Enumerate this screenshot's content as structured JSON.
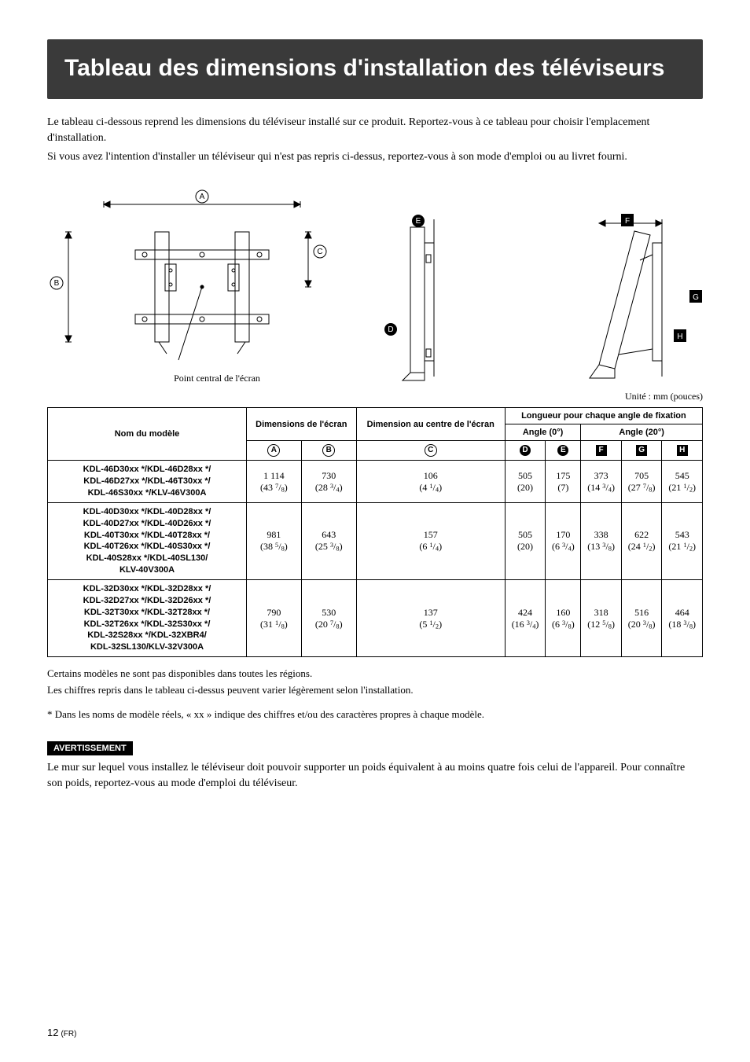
{
  "title": "Tableau des dimensions d'installation des téléviseurs",
  "intro": {
    "p1": "Le tableau ci-dessous reprend les dimensions du téléviseur installé sur ce produit. Reportez-vous à ce tableau pour choisir l'emplacement d'installation.",
    "p2": "Si vous avez l'intention d'installer un téléviseur qui n'est pas repris ci-dessus, reportez-vous à son mode d'emploi ou au livret fourni."
  },
  "figure": {
    "caption": "Point central de l'écran",
    "labels": {
      "A": "A",
      "B": "B",
      "C": "C",
      "D": "D",
      "E": "E",
      "F": "F",
      "G": "G",
      "H": "H"
    }
  },
  "unit_line": "Unité : mm (pouces)",
  "table": {
    "header": {
      "model": "Nom du modèle",
      "screen_dims": "Dimensions de l'écran",
      "center_dim": "Dimension au centre de l'écran",
      "angle_group": "Longueur pour chaque angle de fixation",
      "angle0": "Angle (0°)",
      "angle20": "Angle (20°)"
    },
    "col_labels": {
      "A": "A",
      "B": "B",
      "C": "C",
      "D": "D",
      "E": "E",
      "F": "F",
      "G": "G",
      "H": "H"
    },
    "rows": [
      {
        "model_lines": [
          "KDL-46D30xx */KDL-46D28xx */",
          "KDL-46D27xx */KDL-46T30xx */",
          "KDL-46S30xx */KLV-46V300A"
        ],
        "A": {
          "mm": "1 114",
          "in_whole": "43",
          "in_num": "7",
          "in_den": "8"
        },
        "B": {
          "mm": "730",
          "in_whole": "28",
          "in_num": "3",
          "in_den": "4"
        },
        "C": {
          "mm": "106",
          "in_whole": "4",
          "in_num": "1",
          "in_den": "4"
        },
        "D": {
          "mm": "505",
          "in_plain": "(20)"
        },
        "E": {
          "mm": "175",
          "in_plain": "(7)"
        },
        "F": {
          "mm": "373",
          "in_whole": "14",
          "in_num": "3",
          "in_den": "4"
        },
        "G": {
          "mm": "705",
          "in_whole": "27",
          "in_num": "7",
          "in_den": "8"
        },
        "H": {
          "mm": "545",
          "in_whole": "21",
          "in_num": "1",
          "in_den": "2"
        }
      },
      {
        "model_lines": [
          "KDL-40D30xx */KDL-40D28xx */",
          "KDL-40D27xx */KDL-40D26xx */",
          "KDL-40T30xx */KDL-40T28xx */",
          "KDL-40T26xx */KDL-40S30xx */",
          "KDL-40S28xx */KDL-40SL130/",
          "KLV-40V300A"
        ],
        "A": {
          "mm": "981",
          "in_whole": "38",
          "in_num": "5",
          "in_den": "8"
        },
        "B": {
          "mm": "643",
          "in_whole": "25",
          "in_num": "3",
          "in_den": "8"
        },
        "C": {
          "mm": "157",
          "in_whole": "6",
          "in_num": "1",
          "in_den": "4"
        },
        "D": {
          "mm": "505",
          "in_plain": "(20)"
        },
        "E": {
          "mm": "170",
          "in_whole": "6",
          "in_num": "3",
          "in_den": "4"
        },
        "F": {
          "mm": "338",
          "in_whole": "13",
          "in_num": "3",
          "in_den": "8"
        },
        "G": {
          "mm": "622",
          "in_whole": "24",
          "in_num": "1",
          "in_den": "2"
        },
        "H": {
          "mm": "543",
          "in_whole": "21",
          "in_num": "1",
          "in_den": "2"
        }
      },
      {
        "model_lines": [
          "KDL-32D30xx */KDL-32D28xx */",
          "KDL-32D27xx */KDL-32D26xx */",
          "KDL-32T30xx */KDL-32T28xx */",
          "KDL-32T26xx */KDL-32S30xx */",
          "KDL-32S28xx */KDL-32XBR4/",
          "KDL-32SL130/KLV-32V300A"
        ],
        "A": {
          "mm": "790",
          "in_whole": "31",
          "in_num": "1",
          "in_den": "8"
        },
        "B": {
          "mm": "530",
          "in_whole": "20",
          "in_num": "7",
          "in_den": "8"
        },
        "C": {
          "mm": "137",
          "in_whole": "5",
          "in_num": "1",
          "in_den": "2"
        },
        "D": {
          "mm": "424",
          "in_whole": "16",
          "in_num": "3",
          "in_den": "4"
        },
        "E": {
          "mm": "160",
          "in_whole": "6",
          "in_num": "3",
          "in_den": "8"
        },
        "F": {
          "mm": "318",
          "in_whole": "12",
          "in_num": "5",
          "in_den": "8"
        },
        "G": {
          "mm": "516",
          "in_whole": "20",
          "in_num": "3",
          "in_den": "8"
        },
        "H": {
          "mm": "464",
          "in_whole": "18",
          "in_num": "3",
          "in_den": "8"
        }
      }
    ]
  },
  "notes": {
    "n1": "Certains modèles ne sont pas disponibles dans toutes les régions.",
    "n2": "Les chiffres repris dans le tableau ci-dessus peuvent varier légèrement selon l'installation.",
    "star": "*  Dans les noms de modèle réels, « xx » indique des chiffres et/ou des caractères propres à chaque modèle."
  },
  "warning": {
    "label": "AVERTISSEMENT",
    "text": "Le mur sur lequel vous installez le téléviseur doit pouvoir supporter un poids équivalent à au moins quatre fois celui de l'appareil. Pour connaître son poids, reportez-vous au mode d'emploi du téléviseur."
  },
  "pagenum": {
    "num": "12",
    "lang": "(FR)"
  },
  "colors": {
    "band_bg": "#3a3a3a",
    "band_fg": "#ffffff",
    "stroke": "#000000"
  }
}
